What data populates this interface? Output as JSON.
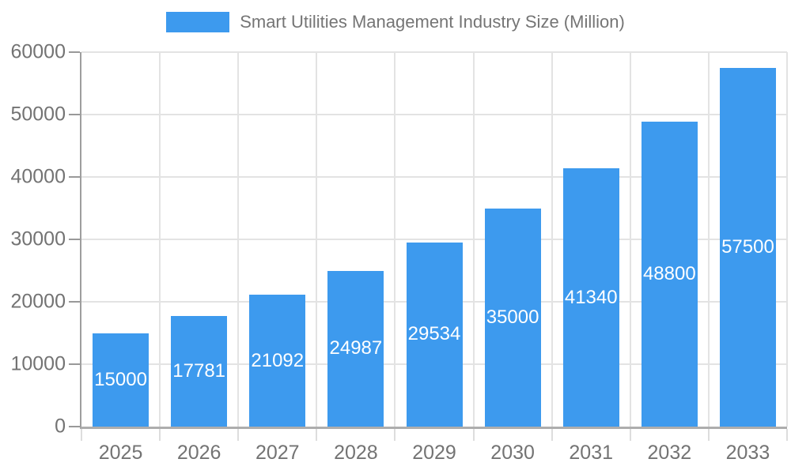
{
  "legend": {
    "label": "Smart Utilities Management Industry Size (Million)"
  },
  "chart_data": {
    "type": "bar",
    "title": "Smart Utilities Management Industry Size (Million)",
    "categories": [
      "2025",
      "2026",
      "2027",
      "2028",
      "2029",
      "2030",
      "2031",
      "2032",
      "2033"
    ],
    "values": [
      15000,
      17781,
      21092,
      24987,
      29534,
      35000,
      41340,
      48800,
      57500
    ],
    "series_name": "Smart Utilities Management Industry Size (Million)",
    "xlabel": "",
    "ylabel": "",
    "ylim": [
      0,
      60000
    ],
    "yticks": [
      0,
      10000,
      20000,
      30000,
      40000,
      50000,
      60000
    ],
    "grid": true,
    "legend_position": "top-center",
    "value_label_position": "inside-center",
    "colors": {
      "bar": "#3D9AEE",
      "value_label": "#FFFFFF",
      "axis_line": "#9E9E9E",
      "grid_line": "#E3E3E3",
      "tick_label": "#737373",
      "legend_text": "#757575",
      "background": "#FFFFFF"
    }
  }
}
